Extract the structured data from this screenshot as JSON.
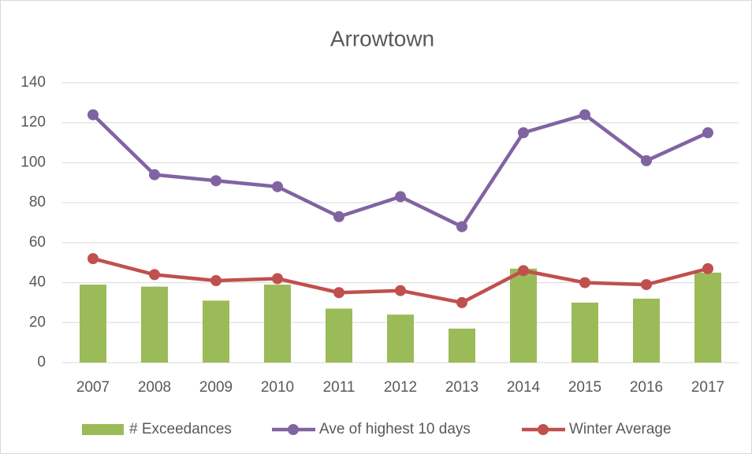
{
  "chart_data": {
    "type": "combo",
    "title": "Arrowtown",
    "categories": [
      "2007",
      "2008",
      "2009",
      "2010",
      "2011",
      "2012",
      "2013",
      "2014",
      "2015",
      "2016",
      "2017"
    ],
    "series": [
      {
        "name": "# Exceedances",
        "type": "bar",
        "color": "#9bbb59",
        "values": [
          39,
          38,
          31,
          39,
          27,
          24,
          17,
          47,
          30,
          32,
          45
        ]
      },
      {
        "name": "Ave of highest 10 days",
        "type": "line",
        "color": "#8064a2",
        "values": [
          124,
          94,
          91,
          88,
          73,
          83,
          68,
          115,
          124,
          101,
          115
        ]
      },
      {
        "name": "Winter Average",
        "type": "line",
        "color": "#c0504d",
        "values": [
          52,
          44,
          41,
          42,
          35,
          36,
          30,
          46,
          40,
          39,
          47
        ]
      }
    ],
    "ylim": [
      0,
      140
    ],
    "yticks": [
      0,
      20,
      40,
      60,
      80,
      100,
      120,
      140
    ],
    "grid": true,
    "legend": "bottom"
  }
}
